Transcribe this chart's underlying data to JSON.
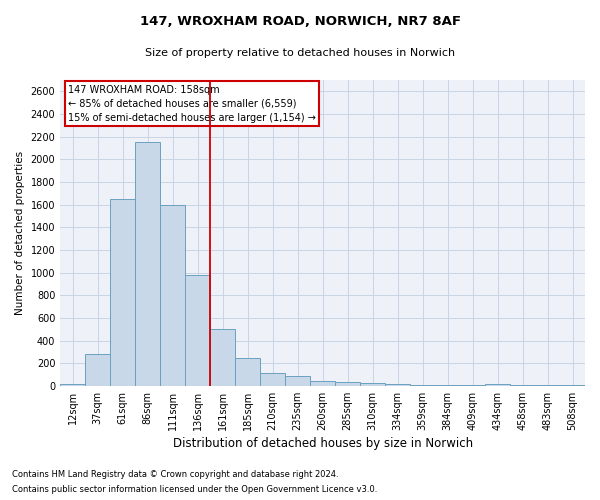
{
  "title_line1": "147, WROXHAM ROAD, NORWICH, NR7 8AF",
  "title_line2": "Size of property relative to detached houses in Norwich",
  "xlabel": "Distribution of detached houses by size in Norwich",
  "ylabel": "Number of detached properties",
  "categories": [
    "12sqm",
    "37sqm",
    "61sqm",
    "86sqm",
    "111sqm",
    "136sqm",
    "161sqm",
    "185sqm",
    "210sqm",
    "235sqm",
    "260sqm",
    "285sqm",
    "310sqm",
    "334sqm",
    "359sqm",
    "384sqm",
    "409sqm",
    "434sqm",
    "458sqm",
    "483sqm",
    "508sqm"
  ],
  "values": [
    20,
    280,
    1650,
    2150,
    1600,
    980,
    500,
    245,
    115,
    90,
    40,
    35,
    25,
    15,
    10,
    8,
    5,
    15,
    5,
    5,
    5
  ],
  "bar_color": "#c8d8e8",
  "bar_edge_color": "#6aa0bf",
  "bar_edge_width": 0.7,
  "grid_color": "#c8d4e4",
  "background_color": "#eef2f8",
  "red_line_index": 5.5,
  "annotation_line1": "147 WROXHAM ROAD: 158sqm",
  "annotation_line2": "← 85% of detached houses are smaller (6,559)",
  "annotation_line3": "15% of semi-detached houses are larger (1,154) →",
  "annotation_box_facecolor": "#ffffff",
  "annotation_box_edgecolor": "#cc0000",
  "ylim": [
    0,
    2700
  ],
  "yticks": [
    0,
    200,
    400,
    600,
    800,
    1000,
    1200,
    1400,
    1600,
    1800,
    2000,
    2200,
    2400,
    2600
  ],
  "footnote1": "Contains HM Land Registry data © Crown copyright and database right 2024.",
  "footnote2": "Contains public sector information licensed under the Open Government Licence v3.0.",
  "title1_fontsize": 9.5,
  "title2_fontsize": 8,
  "ylabel_fontsize": 7.5,
  "xlabel_fontsize": 8.5,
  "tick_fontsize": 7,
  "annotation_fontsize": 7,
  "footnote_fontsize": 6
}
